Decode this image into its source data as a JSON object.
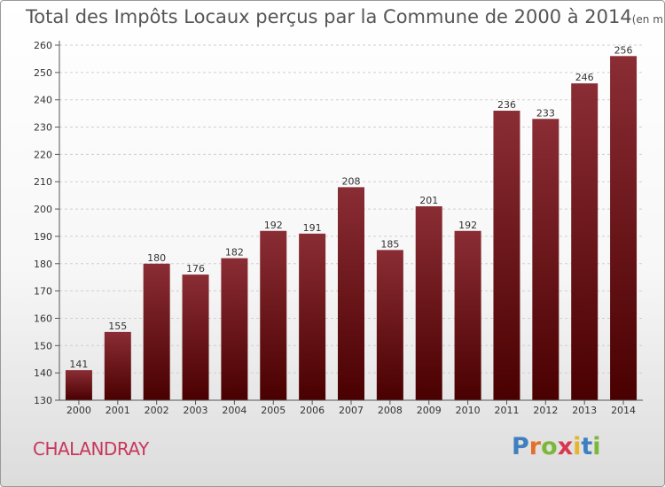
{
  "header": {
    "title": "Total des Impôts Locaux perçus par la Commune de 2000 à 2014",
    "unit": "(en milliers d'€)"
  },
  "commune": "CHALANDRAY",
  "logo": {
    "letters": [
      "P",
      "r",
      "o",
      "x",
      "i",
      "t",
      "i"
    ],
    "colors": [
      "#3d7fbf",
      "#e46f2a",
      "#7bb83a",
      "#d8384f",
      "#e6b52b",
      "#3d7fbf",
      "#7bb83a"
    ]
  },
  "colors": {
    "bar_top": "#8a2d34",
    "bar_bottom": "#4a0000"
  },
  "chart_data": {
    "type": "bar",
    "title": "Total des Impôts Locaux perçus par la Commune de 2000 à 2014",
    "categories": [
      "2000",
      "2001",
      "2002",
      "2003",
      "2004",
      "2005",
      "2006",
      "2007",
      "2008",
      "2009",
      "2010",
      "2011",
      "2012",
      "2013",
      "2014"
    ],
    "values": [
      141,
      155,
      180,
      176,
      182,
      192,
      191,
      208,
      185,
      201,
      192,
      236,
      233,
      246,
      256
    ],
    "ylim": [
      130,
      260
    ],
    "yticks": [
      130,
      140,
      150,
      160,
      170,
      180,
      190,
      200,
      210,
      220,
      230,
      240,
      250,
      260
    ],
    "grid": true,
    "xlabel": "",
    "ylabel": ""
  }
}
